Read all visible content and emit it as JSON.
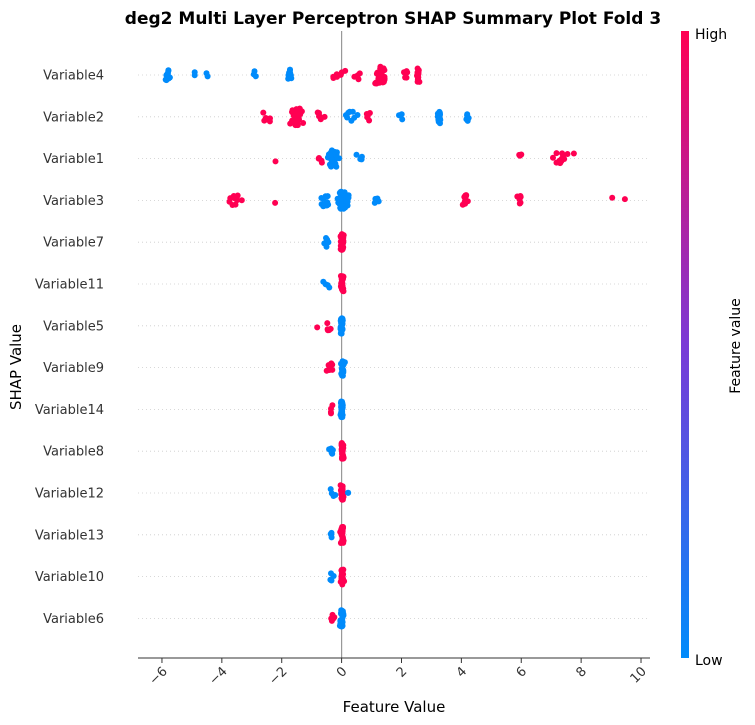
{
  "chart_data": {
    "type": "scatter",
    "subtype": "shap-beeswarm",
    "title": "deg2 Multi Layer Perceptron SHAP Summary Plot Fold 3",
    "xlabel": "Feature Value",
    "ylabel": "SHAP Value",
    "xlim": [
      -6.8,
      10.3
    ],
    "xticks": [
      -6,
      -4,
      -2,
      0,
      2,
      4,
      6,
      8,
      10
    ],
    "xtick_labels": [
      "−6",
      "−4",
      "−2",
      "0",
      "2",
      "4",
      "6",
      "8",
      "10"
    ],
    "grid": false,
    "colors": {
      "low": "#008bfb",
      "high": "#ff0052",
      "zero_line": "#999999"
    },
    "colorbar": {
      "label": "Feature value",
      "high_label": "High",
      "low_label": "Low"
    },
    "features": [
      {
        "name": "Variable4",
        "clusters": [
          {
            "x": -5.8,
            "s": 0.08,
            "n": 14,
            "v": 0.0
          },
          {
            "x": -4.9,
            "s": 0.05,
            "n": 2,
            "v": 0.0
          },
          {
            "x": -4.5,
            "s": 0.05,
            "n": 2,
            "v": 0.0
          },
          {
            "x": -2.9,
            "s": 0.05,
            "n": 3,
            "v": 0.0
          },
          {
            "x": -1.7,
            "s": 0.12,
            "n": 10,
            "v": 0.0
          },
          {
            "x": -0.1,
            "s": 0.18,
            "n": 7,
            "v": 1.0
          },
          {
            "x": 0.55,
            "s": 0.15,
            "n": 4,
            "v": 1.0
          },
          {
            "x": 1.3,
            "s": 0.15,
            "n": 40,
            "v": 1.0
          },
          {
            "x": 2.1,
            "s": 0.12,
            "n": 6,
            "v": 1.0
          },
          {
            "x": 2.55,
            "s": 0.03,
            "n": 22,
            "v": 1.0
          }
        ]
      },
      {
        "name": "Variable2",
        "clusters": [
          {
            "x": -2.5,
            "s": 0.15,
            "n": 6,
            "v": 1.0
          },
          {
            "x": -1.5,
            "s": 0.15,
            "n": 40,
            "v": 1.0
          },
          {
            "x": -0.75,
            "s": 0.12,
            "n": 6,
            "v": 1.0
          },
          {
            "x": 0.35,
            "s": 0.2,
            "n": 8,
            "v": 0.0
          },
          {
            "x": 0.9,
            "s": 0.08,
            "n": 5,
            "v": 1.0
          },
          {
            "x": 2.0,
            "s": 0.12,
            "n": 3,
            "v": 0.0
          },
          {
            "x": 3.25,
            "s": 0.05,
            "n": 20,
            "v": 0.0
          },
          {
            "x": 4.2,
            "s": 0.05,
            "n": 5,
            "v": 0.0
          }
        ]
      },
      {
        "name": "Variable1",
        "clusters": [
          {
            "x": -2.2,
            "s": 0.03,
            "n": 1,
            "v": 1.0
          },
          {
            "x": -0.7,
            "s": 0.12,
            "n": 4,
            "v": 1.0
          },
          {
            "x": -0.3,
            "s": 0.12,
            "n": 36,
            "v": 0.0
          },
          {
            "x": 0.65,
            "s": 0.12,
            "n": 4,
            "v": 0.0
          },
          {
            "x": 5.95,
            "s": 0.05,
            "n": 4,
            "v": 1.0
          },
          {
            "x": 7.3,
            "s": 0.2,
            "n": 12,
            "v": 1.0
          }
        ]
      },
      {
        "name": "Variable3",
        "clusters": [
          {
            "x": -3.6,
            "s": 0.15,
            "n": 8,
            "v": 1.0
          },
          {
            "x": -3.3,
            "s": 0.03,
            "n": 1,
            "v": 1.0
          },
          {
            "x": -2.2,
            "s": 0.03,
            "n": 1,
            "v": 1.0
          },
          {
            "x": -0.5,
            "s": 0.12,
            "n": 14,
            "v": 0.0
          },
          {
            "x": 0.05,
            "s": 0.15,
            "n": 45,
            "v": 0.0
          },
          {
            "x": 1.2,
            "s": 0.12,
            "n": 5,
            "v": 0.0
          },
          {
            "x": 4.15,
            "s": 0.12,
            "n": 9,
            "v": 1.0
          },
          {
            "x": 5.95,
            "s": 0.04,
            "n": 6,
            "v": 1.0
          },
          {
            "x": 9.05,
            "s": 0.03,
            "n": 1,
            "v": 1.0
          },
          {
            "x": 9.45,
            "s": 0.03,
            "n": 1,
            "v": 1.0
          }
        ]
      },
      {
        "name": "Variable7",
        "clusters": [
          {
            "x": -0.5,
            "s": 0.12,
            "n": 7,
            "v": 0.0
          },
          {
            "x": 0.02,
            "s": 0.04,
            "n": 32,
            "v": 1.0
          }
        ]
      },
      {
        "name": "Variable11",
        "clusters": [
          {
            "x": -0.45,
            "s": 0.08,
            "n": 4,
            "v": 0.0
          },
          {
            "x": 0.02,
            "s": 0.04,
            "n": 32,
            "v": 1.0
          }
        ]
      },
      {
        "name": "Variable5",
        "clusters": [
          {
            "x": -0.85,
            "s": 0.03,
            "n": 1,
            "v": 1.0
          },
          {
            "x": -0.45,
            "s": 0.08,
            "n": 5,
            "v": 1.0
          },
          {
            "x": 0.0,
            "s": 0.04,
            "n": 32,
            "v": 0.0
          }
        ]
      },
      {
        "name": "Variable9",
        "clusters": [
          {
            "x": -0.4,
            "s": 0.1,
            "n": 7,
            "v": 1.0
          },
          {
            "x": 0.03,
            "s": 0.04,
            "n": 32,
            "v": 0.0
          }
        ]
      },
      {
        "name": "Variable14",
        "clusters": [
          {
            "x": -0.35,
            "s": 0.06,
            "n": 4,
            "v": 1.0
          },
          {
            "x": 0.0,
            "s": 0.04,
            "n": 32,
            "v": 0.0
          }
        ]
      },
      {
        "name": "Variable8",
        "clusters": [
          {
            "x": -0.35,
            "s": 0.06,
            "n": 5,
            "v": 0.0
          },
          {
            "x": 0.02,
            "s": 0.04,
            "n": 32,
            "v": 1.0
          }
        ]
      },
      {
        "name": "Variable12",
        "clusters": [
          {
            "x": -0.3,
            "s": 0.06,
            "n": 4,
            "v": 0.0
          },
          {
            "x": 0.02,
            "s": 0.04,
            "n": 30,
            "v": 1.0
          },
          {
            "x": 0.22,
            "s": 0.02,
            "n": 2,
            "v": 0.0
          }
        ]
      },
      {
        "name": "Variable13",
        "clusters": [
          {
            "x": -0.35,
            "s": 0.06,
            "n": 4,
            "v": 0.0
          },
          {
            "x": 0.02,
            "s": 0.04,
            "n": 32,
            "v": 1.0
          }
        ]
      },
      {
        "name": "Variable10",
        "clusters": [
          {
            "x": -0.35,
            "s": 0.06,
            "n": 4,
            "v": 0.0
          },
          {
            "x": 0.02,
            "s": 0.04,
            "n": 32,
            "v": 1.0
          }
        ]
      },
      {
        "name": "Variable6",
        "clusters": [
          {
            "x": -0.3,
            "s": 0.06,
            "n": 5,
            "v": 1.0
          },
          {
            "x": 0.0,
            "s": 0.04,
            "n": 32,
            "v": 0.0
          }
        ]
      }
    ]
  }
}
